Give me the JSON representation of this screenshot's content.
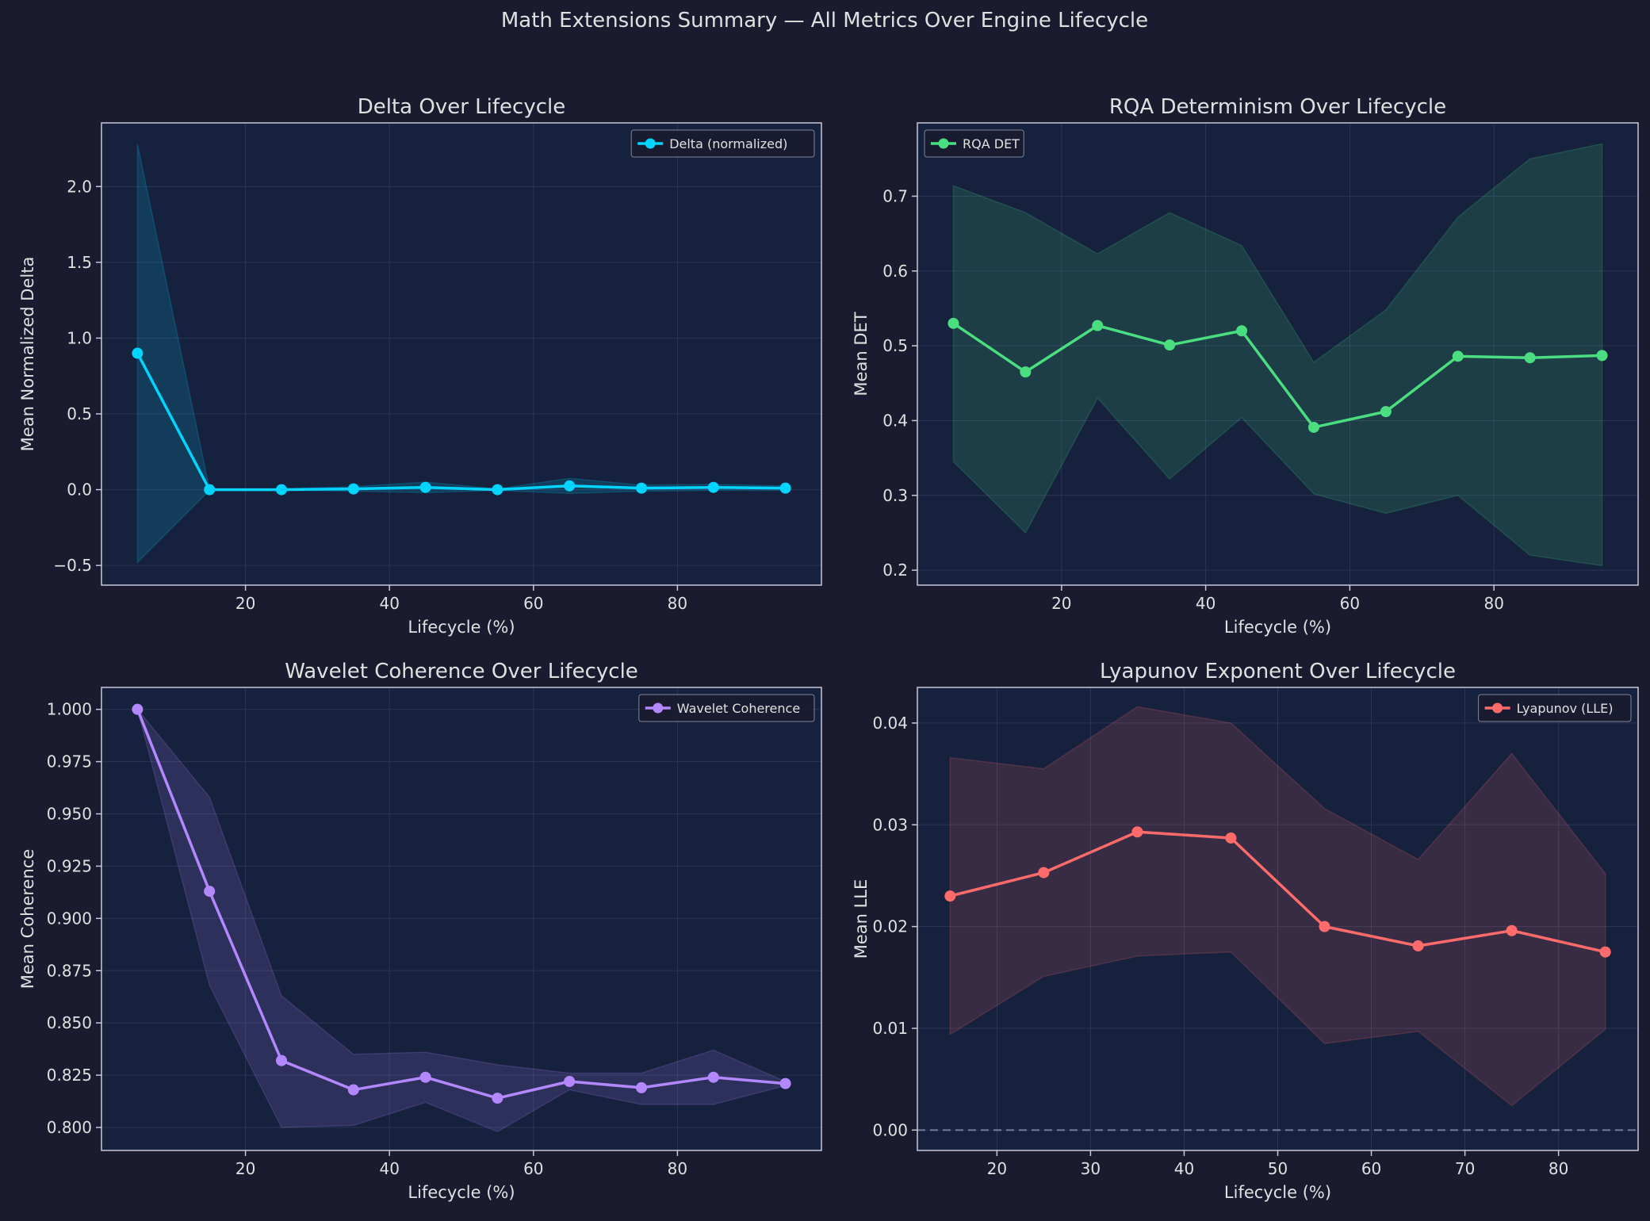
{
  "figure": {
    "title": "Math Extensions Summary — All Metrics Over Engine Lifecycle",
    "background": "#1a1b2e",
    "axes_background": "#16213e",
    "text_color": "#e0e0e0",
    "spine_color": "#c8c8d8"
  },
  "chart_data": [
    {
      "type": "line",
      "title": "Delta Over Lifecycle",
      "xlabel": "Lifecycle (%)",
      "ylabel": "Mean Normalized Delta",
      "xlim": [
        0,
        100
      ],
      "ylim": [
        -0.63,
        2.42
      ],
      "xticks": [
        20,
        40,
        60,
        80
      ],
      "yticks": [
        -0.5,
        0.0,
        0.5,
        1.0,
        1.5,
        2.0
      ],
      "ytick_labels": [
        "−0.5",
        "0.0",
        "0.5",
        "1.0",
        "1.5",
        "2.0"
      ],
      "grid": true,
      "legend_position": "upper right",
      "color": "#00d4ff",
      "series": [
        {
          "name": "Delta (normalized)",
          "x": [
            5,
            15,
            25,
            35,
            45,
            55,
            65,
            75,
            85,
            95
          ],
          "values": [
            0.9,
            0.0,
            0.0,
            0.005,
            0.015,
            0.0,
            0.025,
            0.01,
            0.015,
            0.01
          ],
          "band_lower": [
            -0.48,
            -0.005,
            -0.005,
            -0.01,
            -0.02,
            -0.005,
            -0.025,
            -0.01,
            -0.005,
            -0.005
          ],
          "band_upper": [
            2.28,
            0.005,
            0.005,
            0.02,
            0.05,
            0.005,
            0.075,
            0.03,
            0.035,
            0.025
          ]
        }
      ]
    },
    {
      "type": "line",
      "title": "RQA Determinism Over Lifecycle",
      "xlabel": "Lifecycle (%)",
      "ylabel": "Mean DET",
      "xlim": [
        0,
        100
      ],
      "ylim": [
        0.18,
        0.798
      ],
      "xticks": [
        20,
        40,
        60,
        80
      ],
      "yticks": [
        0.2,
        0.3,
        0.4,
        0.5,
        0.6,
        0.7
      ],
      "ytick_labels": [
        "0.2",
        "0.3",
        "0.4",
        "0.5",
        "0.6",
        "0.7"
      ],
      "grid": true,
      "legend_position": "upper left",
      "color": "#4ade80",
      "series": [
        {
          "name": "RQA DET",
          "x": [
            5,
            15,
            25,
            35,
            45,
            55,
            65,
            75,
            85,
            95
          ],
          "values": [
            0.53,
            0.465,
            0.527,
            0.501,
            0.52,
            0.391,
            0.412,
            0.486,
            0.484,
            0.487
          ],
          "band_lower": [
            0.345,
            0.25,
            0.43,
            0.322,
            0.404,
            0.302,
            0.276,
            0.3,
            0.22,
            0.206
          ],
          "band_upper": [
            0.714,
            0.678,
            0.623,
            0.678,
            0.634,
            0.478,
            0.548,
            0.672,
            0.75,
            0.77
          ]
        }
      ]
    },
    {
      "type": "line",
      "title": "Wavelet Coherence Over Lifecycle",
      "xlabel": "Lifecycle (%)",
      "ylabel": "Mean Coherence",
      "xlim": [
        0,
        100
      ],
      "ylim": [
        0.789,
        1.0105
      ],
      "xticks": [
        20,
        40,
        60,
        80
      ],
      "yticks": [
        0.8,
        0.825,
        0.85,
        0.875,
        0.9,
        0.925,
        0.95,
        0.975,
        1.0
      ],
      "ytick_labels": [
        "0.800",
        "0.825",
        "0.850",
        "0.875",
        "0.900",
        "0.925",
        "0.950",
        "0.975",
        "1.000"
      ],
      "grid": true,
      "legend_position": "upper right",
      "color": "#b388ff",
      "series": [
        {
          "name": "Wavelet Coherence",
          "x": [
            5,
            15,
            25,
            35,
            45,
            55,
            65,
            75,
            85,
            95
          ],
          "values": [
            1.0,
            0.913,
            0.832,
            0.818,
            0.824,
            0.814,
            0.822,
            0.819,
            0.824,
            0.821
          ],
          "band_lower": [
            1.0,
            0.868,
            0.8,
            0.801,
            0.812,
            0.798,
            0.818,
            0.811,
            0.811,
            0.82
          ],
          "band_upper": [
            1.0,
            0.958,
            0.863,
            0.835,
            0.836,
            0.83,
            0.826,
            0.826,
            0.837,
            0.822
          ]
        }
      ]
    },
    {
      "type": "line",
      "title": "Lyapunov Exponent Over Lifecycle",
      "xlabel": "Lifecycle (%)",
      "ylabel": "Mean LLE",
      "xlim": [
        11.5,
        88.5
      ],
      "ylim": [
        -0.002,
        0.0435
      ],
      "xticks": [
        20,
        30,
        40,
        50,
        60,
        70,
        80
      ],
      "yticks": [
        0.0,
        0.01,
        0.02,
        0.03,
        0.04
      ],
      "ytick_labels": [
        "0.00",
        "0.01",
        "0.02",
        "0.03",
        "0.04"
      ],
      "grid": true,
      "legend_position": "upper right",
      "color": "#ff6b6b",
      "reference_line_y": 0.0,
      "series": [
        {
          "name": "Lyapunov (LLE)",
          "x": [
            15,
            25,
            35,
            45,
            55,
            65,
            75,
            85
          ],
          "values": [
            0.023,
            0.0253,
            0.0293,
            0.0287,
            0.02,
            0.0181,
            0.0196,
            0.0175
          ],
          "band_lower": [
            0.0094,
            0.0151,
            0.0171,
            0.0175,
            0.0085,
            0.0097,
            0.0024,
            0.0099
          ],
          "band_upper": [
            0.0366,
            0.0355,
            0.0416,
            0.04,
            0.0316,
            0.0266,
            0.037,
            0.0252
          ]
        }
      ]
    }
  ]
}
